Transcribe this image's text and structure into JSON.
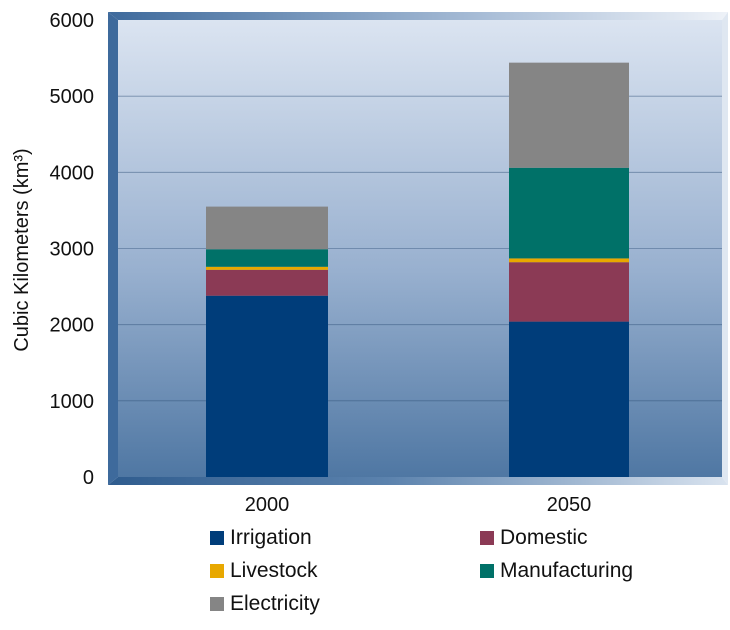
{
  "chart_data": {
    "type": "bar",
    "stacked": true,
    "categories": [
      "2000",
      "2050"
    ],
    "series": [
      {
        "name": "Irrigation",
        "color": "#003D7A",
        "values": [
          2380,
          2040
        ]
      },
      {
        "name": "Domestic",
        "color": "#8B3A55",
        "values": [
          340,
          780
        ]
      },
      {
        "name": "Livestock",
        "color": "#E8A800",
        "values": [
          40,
          50
        ]
      },
      {
        "name": "Manufacturing",
        "color": "#007168",
        "values": [
          230,
          1190
        ]
      },
      {
        "name": "Electricity",
        "color": "#858585",
        "values": [
          560,
          1380
        ]
      }
    ],
    "title": "",
    "xlabel": "",
    "ylabel": "Cubic Kilometers (km³)",
    "ylim": [
      0,
      6000
    ],
    "yticks": [
      "0",
      "1000",
      "2000",
      "3000",
      "4000",
      "5000",
      "6000"
    ],
    "grid": true,
    "legend_position": "bottom"
  }
}
